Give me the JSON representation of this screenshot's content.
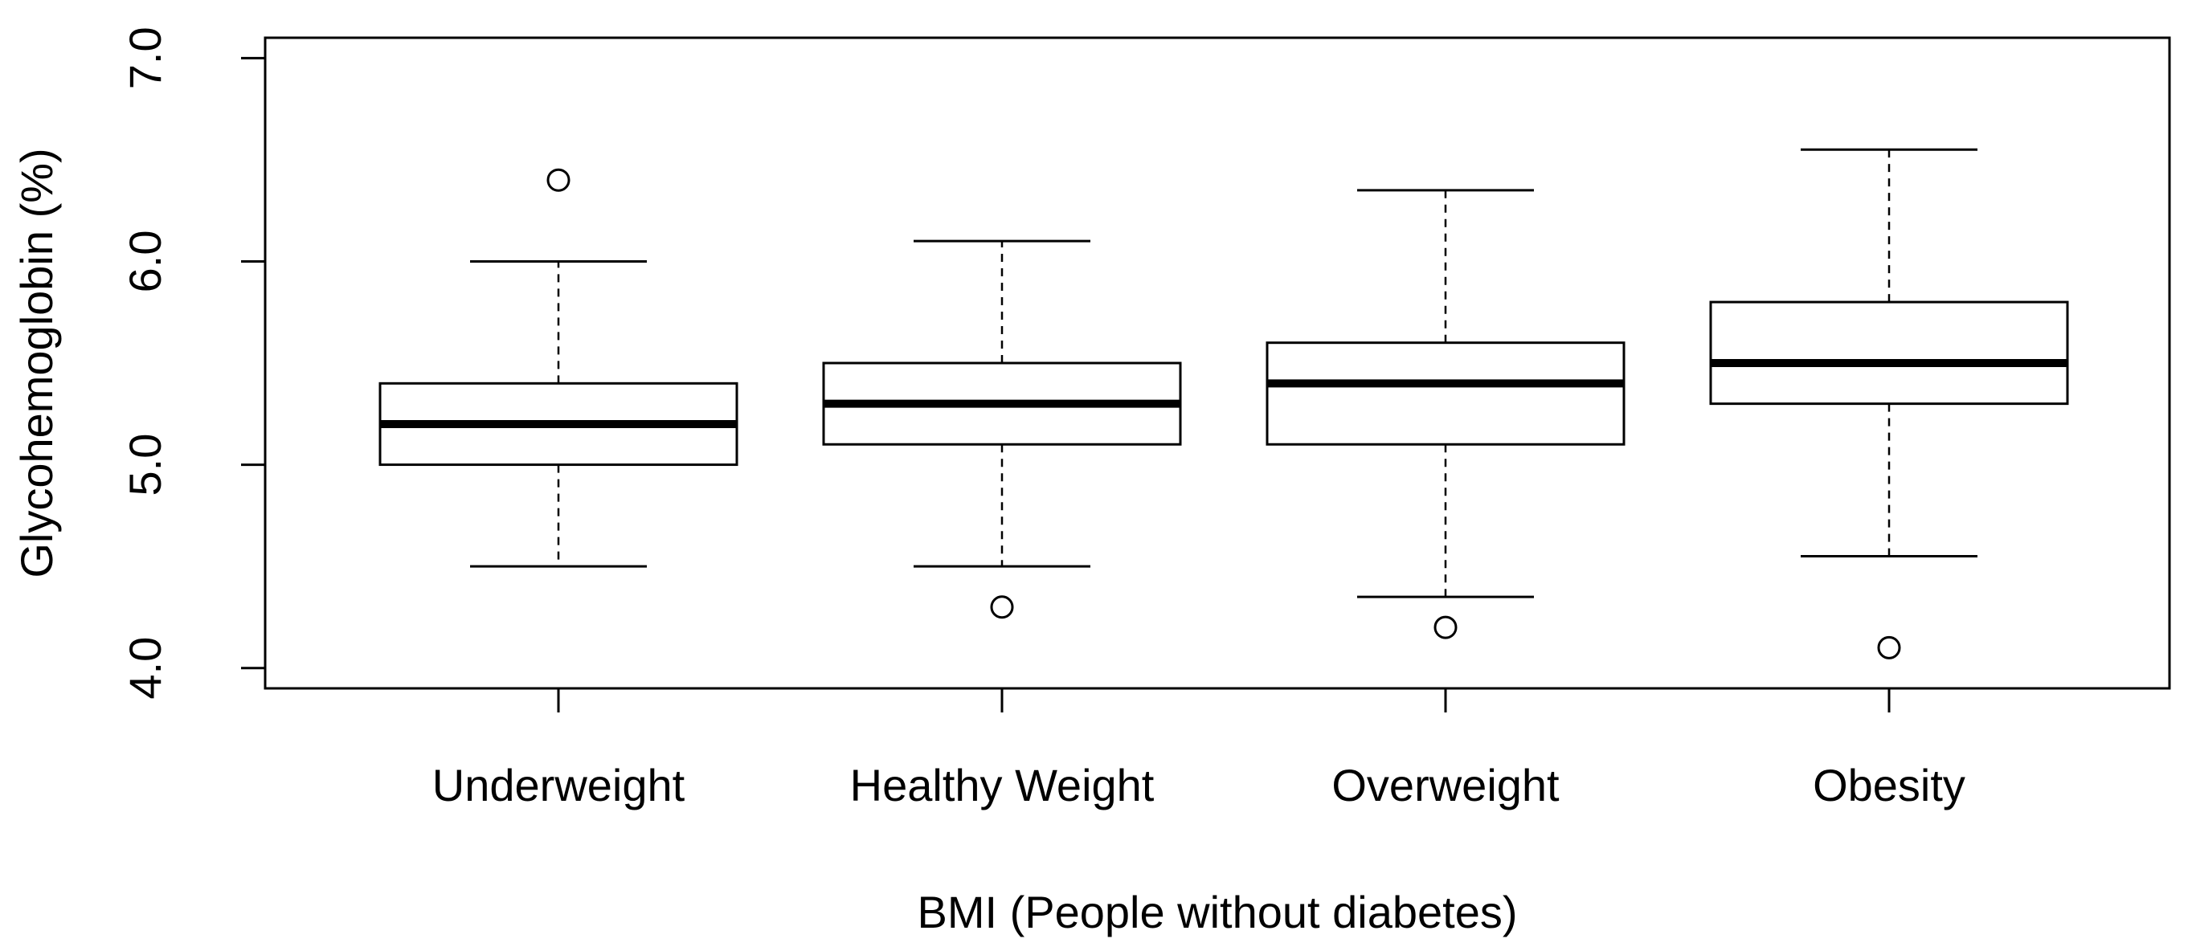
{
  "chart_data": {
    "type": "boxplot",
    "title": "",
    "xlabel": "BMI (People without diabetes)",
    "ylabel": "Glycohemoglobin (%)",
    "ylim": [
      3.9,
      7.1
    ],
    "yticks": [
      4.0,
      5.0,
      6.0,
      7.0
    ],
    "ytick_labels": [
      "4.0",
      "5.0",
      "6.0",
      "7.0"
    ],
    "categories": [
      "Underweight",
      "Healthy Weight",
      "Overweight",
      "Obesity"
    ],
    "boxes": [
      {
        "name": "Underweight",
        "whisker_low": 4.5,
        "q1": 5.0,
        "median": 5.2,
        "q3": 5.4,
        "whisker_high": 6.0,
        "outliers": [
          6.4
        ]
      },
      {
        "name": "Healthy Weight",
        "whisker_low": 4.5,
        "q1": 5.1,
        "median": 5.3,
        "q3": 5.5,
        "whisker_high": 6.1,
        "outliers": [
          4.3
        ]
      },
      {
        "name": "Overweight",
        "whisker_low": 4.35,
        "q1": 5.1,
        "median": 5.4,
        "q3": 5.6,
        "whisker_high": 6.35,
        "outliers": [
          4.2
        ]
      },
      {
        "name": "Obesity",
        "whisker_low": 4.55,
        "q1": 5.3,
        "median": 5.5,
        "q3": 5.8,
        "whisker_high": 6.55,
        "outliers": [
          4.1
        ]
      }
    ],
    "grid": false,
    "legend": "none"
  }
}
